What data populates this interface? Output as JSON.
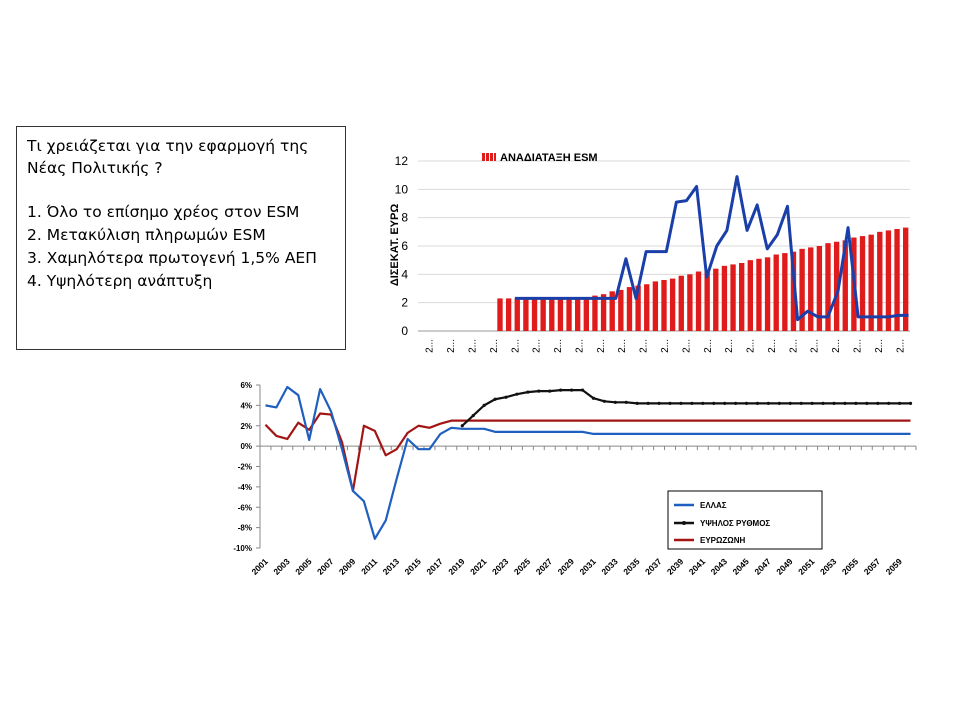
{
  "textbox": {
    "title_lines": [
      "Τι χρειάζεται για την εφαρμογή της",
      "Νέας Πολιτικής ?"
    ],
    "items": [
      "1. Όλο το επίσημο χρέος στον ESM",
      "2. Μετακύλιση πληρωμών ESM",
      "3. Χαμηλότερα πρωτογενή 1,5% ΑΕΠ",
      "4. Υψηλότερη ανάπτυξη"
    ]
  },
  "colors": {
    "bar": "#e01b1b",
    "bar_stripe": "#ffffff",
    "blue_line": "#1b3fa8",
    "ellas": "#1f5fbf",
    "high": "#111111",
    "eurozone": "#a31515"
  },
  "chart_data": [
    {
      "type": "bar",
      "title": "",
      "ylabel": "ΔΙΣΕΚΑΤ. ΕΥΡΩ",
      "xlabel": "",
      "ylim": [
        0,
        12
      ],
      "yticks": [
        "0",
        "2",
        "4",
        "6",
        "8",
        "10",
        "12"
      ],
      "xtick_labels": [
        "2...",
        "2...",
        "2...",
        "2...",
        "2...",
        "2...",
        "2...",
        "2...",
        "2...",
        "2...",
        "2...",
        "2...",
        "2...",
        "2...",
        "2...",
        "2...",
        "2...",
        "2...",
        "2...",
        "2...",
        "2...",
        "2...",
        "2..."
      ],
      "legend": {
        "placement": "top-left",
        "bar_name": "ΑΝΑΔΙΑΤΑΞΗ ESM"
      },
      "bars": [
        0,
        0,
        0,
        0,
        0,
        0,
        0,
        0,
        0,
        2.3,
        2.3,
        2.3,
        2.3,
        2.3,
        2.3,
        2.3,
        2.3,
        2.3,
        2.3,
        2.3,
        2.5,
        2.6,
        2.8,
        2.9,
        3.1,
        3.2,
        3.3,
        3.5,
        3.6,
        3.7,
        3.9,
        4.0,
        4.2,
        4.3,
        4.4,
        4.6,
        4.7,
        4.8,
        5.0,
        5.1,
        5.2,
        5.4,
        5.5,
        5.6,
        5.8,
        5.9,
        6.0,
        6.2,
        6.3,
        6.4,
        6.6,
        6.7,
        6.8,
        7.0,
        7.1,
        7.2,
        7.3
      ],
      "line": [
        null,
        null,
        null,
        null,
        null,
        null,
        null,
        null,
        null,
        2.3,
        2.3,
        2.3,
        2.3,
        2.3,
        2.3,
        2.3,
        2.3,
        2.3,
        2.3,
        2.3,
        5.1,
        2.3,
        5.6,
        5.6,
        5.6,
        9.1,
        9.2,
        10.2,
        3.8,
        6.0,
        7.1,
        10.9,
        7.1,
        8.9,
        5.8,
        6.8,
        8.8,
        0.8,
        1.4,
        1.0,
        1.0,
        2.8,
        7.3,
        1.0,
        1.0,
        1.0,
        1.0,
        1.1,
        1.1
      ]
    },
    {
      "type": "line",
      "title": "",
      "xlabel": "",
      "ylabel": "",
      "ylim": [
        -10,
        6
      ],
      "yticks": [
        "6%",
        "4%",
        "2%",
        "0%",
        "-2%",
        "-4%",
        "-6%",
        "-8%",
        "-10%"
      ],
      "x_labels": [
        "2001",
        "2003",
        "2005",
        "2007",
        "2009",
        "2011",
        "2013",
        "2015",
        "2017",
        "2019",
        "2021",
        "2023",
        "2025",
        "2027",
        "2029",
        "2031",
        "2033",
        "2035",
        "2037",
        "2039",
        "2041",
        "2043",
        "2045",
        "2047",
        "2049",
        "2051",
        "2053",
        "2055",
        "2057",
        "2059"
      ],
      "x_start": 2001,
      "x_end": 2060,
      "legend_placement": "bottom-right",
      "series": [
        {
          "name": "ΕΛΛΑΣ",
          "values": [
            4.0,
            3.8,
            5.8,
            5.0,
            0.6,
            5.6,
            3.4,
            -0.3,
            -4.4,
            -5.4,
            -9.1,
            -7.3,
            -3.2,
            0.7,
            -0.3,
            -0.3,
            1.2,
            1.8,
            1.7,
            1.7,
            1.7,
            1.4,
            1.4,
            1.4,
            1.4,
            1.4,
            1.4,
            1.4,
            1.4,
            1.4,
            1.2,
            1.2,
            1.2,
            1.2,
            1.2,
            1.2,
            1.2,
            1.2,
            1.2,
            1.2,
            1.2,
            1.2,
            1.2,
            1.2,
            1.2,
            1.2,
            1.2,
            1.2,
            1.2,
            1.2,
            1.2,
            1.2,
            1.2,
            1.2,
            1.2,
            1.2,
            1.2,
            1.2,
            1.2,
            1.2
          ]
        },
        {
          "name": "ΥΨΗΛΟΣ ΡΥΘΜΟΣ",
          "values": [
            null,
            null,
            null,
            null,
            null,
            null,
            null,
            null,
            null,
            null,
            null,
            null,
            null,
            null,
            null,
            null,
            null,
            null,
            2.0,
            3.0,
            4.0,
            4.6,
            4.8,
            5.1,
            5.3,
            5.4,
            5.4,
            5.5,
            5.5,
            5.5,
            4.7,
            4.4,
            4.3,
            4.3,
            4.2,
            4.2,
            4.2,
            4.2,
            4.2,
            4.2,
            4.2,
            4.2,
            4.2,
            4.2,
            4.2,
            4.2,
            4.2,
            4.2,
            4.2,
            4.2,
            4.2,
            4.2,
            4.2,
            4.2,
            4.2,
            4.2,
            4.2,
            4.2,
            4.2,
            4.2
          ]
        },
        {
          "name": "ΕΥΡΩΖΩΝΗ",
          "values": [
            2.1,
            1.0,
            0.7,
            2.3,
            1.6,
            3.2,
            3.1,
            0.4,
            -4.4,
            2.0,
            1.5,
            -0.9,
            -0.3,
            1.3,
            2.0,
            1.8,
            2.2,
            2.5,
            2.5,
            2.5,
            2.5,
            2.5,
            2.5,
            2.5,
            2.5,
            2.5,
            2.5,
            2.5,
            2.5,
            2.5,
            2.5,
            2.5,
            2.5,
            2.5,
            2.5,
            2.5,
            2.5,
            2.5,
            2.5,
            2.5,
            2.5,
            2.5,
            2.5,
            2.5,
            2.5,
            2.5,
            2.5,
            2.5,
            2.5,
            2.5,
            2.5,
            2.5,
            2.5,
            2.5,
            2.5,
            2.5,
            2.5,
            2.5,
            2.5,
            2.5
          ]
        }
      ]
    }
  ]
}
